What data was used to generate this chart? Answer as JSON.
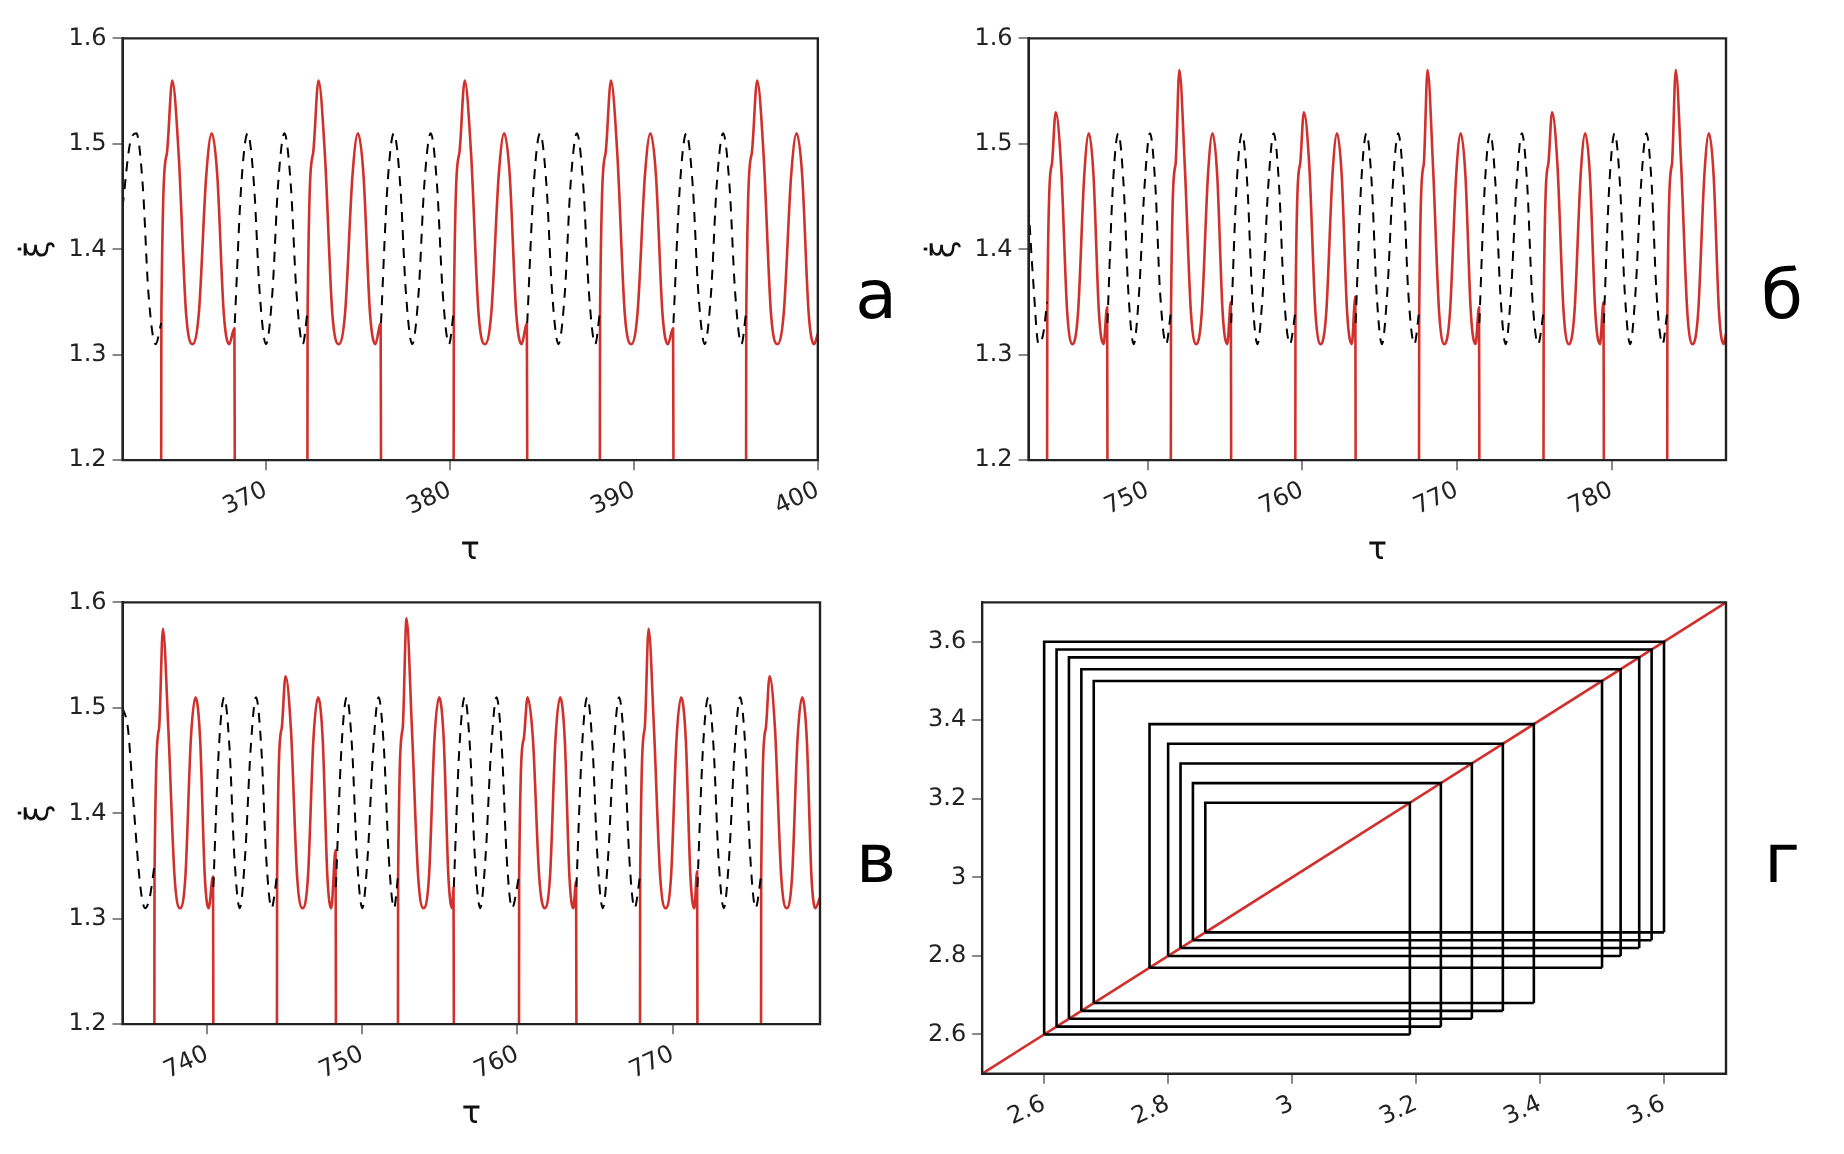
{
  "chart_data": [
    {
      "type": "line",
      "xlabel": "τ",
      "ylabel": "ξ̇",
      "xlim": [
        362.2,
        400
      ],
      "xticks": [
        370,
        380,
        390,
        400
      ],
      "ylim": [
        1.2,
        1.6
      ],
      "yticks": [
        1.2,
        1.3,
        1.4,
        1.5,
        1.6
      ],
      "annotations": [
        "а"
      ],
      "series": [
        {
          "color": "#d0312d",
          "line_style": "solid",
          "x": [
            364.3,
            364.31,
            364.6,
            364.9,
            365.25,
            365.65,
            366.0,
            366.35,
            366.75,
            367.05,
            367.35,
            367.7,
            368.0,
            368.28,
            368.3,
            null,
            372.25,
            372.26,
            372.55,
            372.85,
            373.2,
            373.6,
            373.95,
            374.3,
            374.7,
            375.0,
            375.3,
            375.65,
            375.95,
            376.23,
            376.25,
            null,
            380.2,
            380.21,
            380.5,
            380.8,
            381.15,
            381.55,
            381.9,
            382.25,
            382.65,
            382.95,
            383.25,
            383.6,
            383.9,
            384.18,
            384.2,
            null,
            388.15,
            388.16,
            388.45,
            388.75,
            389.1,
            389.5,
            389.85,
            390.2,
            390.6,
            390.9,
            391.2,
            391.55,
            391.85,
            392.13,
            392.15,
            null,
            396.1,
            396.11,
            396.4,
            396.7,
            397.05,
            397.45,
            397.8,
            398.15,
            398.55,
            398.85,
            399.15,
            399.5,
            399.8,
            400
          ],
          "values": [
            1.2,
            1.34,
            1.49,
            1.56,
            1.49,
            1.34,
            1.31,
            1.34,
            1.47,
            1.51,
            1.47,
            1.34,
            1.31,
            1.325,
            1.2,
            null,
            1.2,
            1.34,
            1.49,
            1.56,
            1.49,
            1.34,
            1.31,
            1.34,
            1.47,
            1.51,
            1.47,
            1.34,
            1.31,
            1.33,
            1.2,
            null,
            1.2,
            1.34,
            1.49,
            1.56,
            1.49,
            1.34,
            1.31,
            1.34,
            1.47,
            1.51,
            1.47,
            1.34,
            1.31,
            1.33,
            1.2,
            null,
            1.2,
            1.34,
            1.49,
            1.56,
            1.49,
            1.34,
            1.31,
            1.34,
            1.47,
            1.51,
            1.47,
            1.34,
            1.31,
            1.325,
            1.2,
            null,
            1.2,
            1.34,
            1.49,
            1.56,
            1.49,
            1.34,
            1.31,
            1.34,
            1.47,
            1.51,
            1.47,
            1.34,
            1.31,
            1.32
          ]
        },
        {
          "color": "#000000",
          "line_style": "dashed",
          "x": [
            362.2,
            362.6,
            362.95,
            363.3,
            363.6,
            364.0,
            364.3,
            null,
            368.3,
            368.65,
            369.0,
            369.35,
            369.65,
            370.0,
            370.35,
            370.65,
            371.0,
            371.35,
            371.65,
            372.0,
            372.25,
            null,
            376.25,
            376.6,
            376.95,
            377.3,
            377.6,
            377.95,
            378.3,
            378.6,
            378.95,
            379.3,
            379.6,
            379.95,
            380.2,
            null,
            384.2,
            384.55,
            384.9,
            385.25,
            385.55,
            385.9,
            386.25,
            386.55,
            386.9,
            387.25,
            387.55,
            387.9,
            388.15,
            null,
            392.15,
            392.5,
            392.85,
            393.2,
            393.5,
            393.85,
            394.2,
            394.5,
            394.85,
            395.2,
            395.5,
            395.85,
            396.1
          ],
          "values": [
            1.44,
            1.5,
            1.51,
            1.46,
            1.36,
            1.31,
            1.33,
            null,
            1.33,
            1.46,
            1.51,
            1.46,
            1.36,
            1.31,
            1.36,
            1.46,
            1.51,
            1.46,
            1.36,
            1.31,
            1.34,
            null,
            1.33,
            1.46,
            1.51,
            1.46,
            1.36,
            1.31,
            1.36,
            1.46,
            1.51,
            1.46,
            1.36,
            1.31,
            1.34,
            null,
            1.33,
            1.46,
            1.51,
            1.46,
            1.36,
            1.31,
            1.36,
            1.46,
            1.51,
            1.46,
            1.36,
            1.31,
            1.34,
            null,
            1.33,
            1.46,
            1.51,
            1.46,
            1.36,
            1.31,
            1.36,
            1.46,
            1.51,
            1.46,
            1.36,
            1.31,
            1.34
          ]
        }
      ]
    },
    {
      "type": "line",
      "xlabel": "τ",
      "ylabel": "ξ̇",
      "xlim": [
        742.3,
        787.4
      ],
      "xticks": [
        750,
        760,
        770,
        780
      ],
      "ylim": [
        1.2,
        1.6
      ],
      "yticks": [
        1.2,
        1.3,
        1.4,
        1.5,
        1.6
      ],
      "annotations": [
        "б"
      ],
      "series": [
        {
          "color": "#d0312d",
          "line_style": "solid",
          "x": [
            743.5,
            743.51,
            743.8,
            744.05,
            744.4,
            744.8,
            745.15,
            745.5,
            745.9,
            746.2,
            746.5,
            746.85,
            747.15,
            747.38,
            747.4,
            null,
            751.5,
            751.51,
            751.8,
            752.05,
            752.4,
            752.8,
            753.15,
            753.5,
            753.9,
            754.2,
            754.5,
            754.85,
            755.15,
            755.38,
            755.4,
            null,
            759.55,
            759.56,
            759.85,
            760.1,
            760.45,
            760.85,
            761.2,
            761.55,
            761.95,
            762.25,
            762.55,
            762.9,
            763.2,
            763.43,
            763.45,
            null,
            767.55,
            767.56,
            767.85,
            768.1,
            768.45,
            768.85,
            769.2,
            769.55,
            769.95,
            770.25,
            770.55,
            770.9,
            771.2,
            771.43,
            771.45,
            null,
            775.6,
            775.61,
            775.9,
            776.15,
            776.5,
            776.9,
            777.25,
            777.6,
            778.0,
            778.3,
            778.6,
            778.95,
            779.25,
            779.48,
            779.5,
            null,
            783.6,
            783.61,
            783.9,
            784.15,
            784.5,
            784.9,
            785.25,
            785.6,
            786.0,
            786.3,
            786.6,
            786.95,
            787.25,
            787.4
          ],
          "values": [
            1.2,
            1.34,
            1.48,
            1.53,
            1.48,
            1.34,
            1.31,
            1.34,
            1.47,
            1.51,
            1.47,
            1.34,
            1.31,
            1.345,
            1.2,
            null,
            1.2,
            1.34,
            1.48,
            1.57,
            1.48,
            1.34,
            1.31,
            1.34,
            1.47,
            1.51,
            1.47,
            1.34,
            1.31,
            1.35,
            1.2,
            null,
            1.2,
            1.34,
            1.48,
            1.53,
            1.48,
            1.34,
            1.31,
            1.34,
            1.47,
            1.51,
            1.47,
            1.34,
            1.31,
            1.355,
            1.2,
            null,
            1.2,
            1.34,
            1.48,
            1.57,
            1.48,
            1.34,
            1.31,
            1.34,
            1.47,
            1.51,
            1.47,
            1.34,
            1.31,
            1.345,
            1.2,
            null,
            1.2,
            1.34,
            1.48,
            1.53,
            1.48,
            1.34,
            1.31,
            1.34,
            1.47,
            1.51,
            1.47,
            1.34,
            1.31,
            1.35,
            1.2,
            null,
            1.2,
            1.34,
            1.48,
            1.57,
            1.48,
            1.34,
            1.31,
            1.34,
            1.47,
            1.51,
            1.47,
            1.34,
            1.31,
            1.32
          ]
        },
        {
          "color": "#000000",
          "line_style": "dashed",
          "x": [
            742.3,
            742.6,
            742.95,
            743.25,
            743.5,
            null,
            747.4,
            747.75,
            748.1,
            748.45,
            748.75,
            749.1,
            749.45,
            749.8,
            750.15,
            750.5,
            750.8,
            751.2,
            751.5,
            null,
            755.4,
            755.75,
            756.1,
            756.45,
            756.75,
            757.1,
            757.45,
            757.8,
            758.15,
            758.5,
            758.8,
            759.2,
            759.55,
            null,
            763.45,
            763.8,
            764.15,
            764.5,
            764.8,
            765.15,
            765.5,
            765.85,
            766.2,
            766.55,
            766.85,
            767.25,
            767.55,
            null,
            771.45,
            771.8,
            772.15,
            772.5,
            772.8,
            773.15,
            773.5,
            773.85,
            774.2,
            774.55,
            774.85,
            775.25,
            775.6,
            null,
            779.5,
            779.85,
            780.2,
            780.55,
            780.85,
            781.2,
            781.55,
            781.9,
            782.25,
            782.6,
            782.9,
            783.3,
            783.6
          ],
          "values": [
            1.44,
            1.37,
            1.31,
            1.32,
            1.35,
            null,
            1.33,
            1.46,
            1.51,
            1.46,
            1.36,
            1.31,
            1.36,
            1.46,
            1.51,
            1.46,
            1.36,
            1.31,
            1.34,
            null,
            1.33,
            1.46,
            1.51,
            1.46,
            1.36,
            1.31,
            1.36,
            1.46,
            1.51,
            1.46,
            1.36,
            1.31,
            1.34,
            null,
            1.33,
            1.46,
            1.51,
            1.46,
            1.36,
            1.31,
            1.36,
            1.46,
            1.51,
            1.46,
            1.36,
            1.31,
            1.34,
            null,
            1.33,
            1.46,
            1.51,
            1.46,
            1.36,
            1.31,
            1.36,
            1.46,
            1.51,
            1.46,
            1.36,
            1.31,
            1.34,
            null,
            1.33,
            1.46,
            1.51,
            1.46,
            1.36,
            1.31,
            1.36,
            1.46,
            1.51,
            1.46,
            1.36,
            1.31,
            1.34
          ]
        }
      ]
    },
    {
      "type": "line",
      "xlabel": "τ",
      "ylabel": "ξ̇",
      "xlim": [
        734.55,
        779.5
      ],
      "xticks": [
        740,
        750,
        760,
        770
      ],
      "ylim": [
        1.2,
        1.6
      ],
      "yticks": [
        1.2,
        1.3,
        1.4,
        1.5,
        1.6
      ],
      "annotations": [
        "в"
      ],
      "series": [
        {
          "color": "#d0312d",
          "line_style": "solid",
          "x": [
            736.6,
            736.61,
            736.9,
            737.15,
            737.5,
            737.9,
            738.25,
            738.6,
            738.95,
            739.25,
            739.55,
            739.85,
            740.1,
            740.38,
            740.4,
            null,
            744.5,
            744.51,
            744.8,
            745.05,
            745.4,
            745.8,
            746.15,
            746.5,
            746.85,
            747.15,
            747.45,
            747.75,
            748.0,
            748.28,
            748.3,
            null,
            752.3,
            752.31,
            752.6,
            752.85,
            753.2,
            753.6,
            753.95,
            754.3,
            754.65,
            754.95,
            755.25,
            755.55,
            755.8,
            755.88,
            755.9,
            null,
            760.1,
            760.11,
            760.4,
            760.65,
            761.0,
            761.4,
            761.75,
            762.1,
            762.45,
            762.75,
            763.05,
            763.35,
            763.6,
            763.78,
            763.8,
            null,
            767.9,
            767.91,
            768.2,
            768.45,
            768.8,
            769.2,
            769.55,
            769.9,
            770.25,
            770.55,
            770.85,
            771.15,
            771.4,
            771.58,
            771.6,
            null,
            775.7,
            775.71,
            776.0,
            776.25,
            776.6,
            777.0,
            777.35,
            777.7,
            778.05,
            778.35,
            778.65,
            778.95,
            779.2,
            779.5
          ],
          "values": [
            1.2,
            1.34,
            1.48,
            1.575,
            1.48,
            1.34,
            1.31,
            1.34,
            1.47,
            1.51,
            1.47,
            1.34,
            1.31,
            1.34,
            1.2,
            null,
            1.2,
            1.34,
            1.48,
            1.53,
            1.48,
            1.34,
            1.31,
            1.34,
            1.47,
            1.51,
            1.47,
            1.34,
            1.31,
            1.365,
            1.2,
            null,
            1.2,
            1.34,
            1.48,
            1.585,
            1.48,
            1.34,
            1.31,
            1.34,
            1.47,
            1.51,
            1.47,
            1.34,
            1.31,
            1.33,
            1.2,
            null,
            1.2,
            1.34,
            1.47,
            1.51,
            1.47,
            1.34,
            1.31,
            1.34,
            1.47,
            1.51,
            1.47,
            1.34,
            1.31,
            1.335,
            1.2,
            null,
            1.2,
            1.34,
            1.48,
            1.575,
            1.48,
            1.34,
            1.31,
            1.34,
            1.47,
            1.51,
            1.47,
            1.34,
            1.31,
            1.345,
            1.2,
            null,
            1.2,
            1.34,
            1.48,
            1.53,
            1.48,
            1.34,
            1.31,
            1.34,
            1.47,
            1.51,
            1.47,
            1.34,
            1.31,
            1.32
          ]
        },
        {
          "color": "#000000",
          "line_style": "dashed",
          "x": [
            734.55,
            734.9,
            735.3,
            735.7,
            736.0,
            736.3,
            736.6,
            null,
            740.4,
            740.75,
            741.1,
            741.45,
            741.75,
            742.1,
            742.45,
            742.8,
            743.15,
            743.5,
            743.8,
            744.15,
            744.5,
            null,
            748.3,
            748.65,
            749.0,
            749.35,
            749.65,
            750.0,
            750.35,
            750.7,
            751.05,
            751.4,
            751.7,
            752.05,
            752.3,
            null,
            755.9,
            756.25,
            756.6,
            756.95,
            757.25,
            757.6,
            757.95,
            758.3,
            758.65,
            759.0,
            759.3,
            759.65,
            760.1,
            null,
            763.8,
            764.15,
            764.5,
            764.85,
            765.15,
            765.5,
            765.85,
            766.2,
            766.55,
            766.9,
            767.2,
            767.55,
            767.9,
            null,
            771.6,
            771.95,
            772.3,
            772.65,
            772.95,
            773.3,
            773.65,
            774.0,
            774.35,
            774.7,
            775.0,
            775.35,
            775.7
          ],
          "values": [
            1.5,
            1.48,
            1.4,
            1.33,
            1.31,
            1.32,
            1.35,
            null,
            1.33,
            1.46,
            1.51,
            1.46,
            1.36,
            1.31,
            1.36,
            1.46,
            1.51,
            1.46,
            1.36,
            1.31,
            1.34,
            null,
            1.33,
            1.46,
            1.51,
            1.46,
            1.36,
            1.31,
            1.36,
            1.46,
            1.51,
            1.46,
            1.36,
            1.31,
            1.34,
            null,
            1.33,
            1.46,
            1.51,
            1.46,
            1.36,
            1.31,
            1.36,
            1.46,
            1.51,
            1.46,
            1.36,
            1.31,
            1.34,
            null,
            1.33,
            1.46,
            1.51,
            1.46,
            1.36,
            1.31,
            1.36,
            1.46,
            1.51,
            1.46,
            1.36,
            1.31,
            1.34,
            null,
            1.33,
            1.46,
            1.51,
            1.46,
            1.36,
            1.31,
            1.36,
            1.46,
            1.51,
            1.46,
            1.36,
            1.31,
            1.34
          ]
        }
      ]
    },
    {
      "type": "line",
      "xlim": [
        2.5,
        3.7
      ],
      "xticks": [
        2.6,
        2.8,
        3,
        3.2,
        3.4,
        3.6
      ],
      "ylim": [
        2.5,
        3.7
      ],
      "yticks": [
        2.6,
        2.8,
        3,
        3.2,
        3.4,
        3.6
      ],
      "annotations": [
        "г"
      ],
      "series": [
        {
          "color": "#d0312d",
          "line_style": "solid",
          "x": [
            2.5,
            3.7
          ],
          "values": [
            2.5,
            3.7
          ]
        },
        {
          "color": "#000000",
          "line_style": "solid",
          "x": [
            2.6,
            2.6,
            3.6,
            3.6,
            null,
            2.86,
            2.86,
            3.19,
            3.19,
            null,
            2.86,
            3.6,
            null,
            2.6,
            3.19
          ],
          "values": [
            2.6,
            3.6,
            3.6,
            2.86,
            null,
            2.86,
            3.19,
            3.19,
            2.6,
            null,
            2.86,
            2.86,
            null,
            2.6,
            2.6
          ]
        },
        {
          "color": "#000000",
          "line_style": "solid",
          "x": [
            2.62,
            2.62,
            3.58,
            3.58,
            null,
            2.84,
            2.84,
            3.24,
            3.24,
            null,
            2.84,
            3.58,
            null,
            2.62,
            3.24
          ],
          "values": [
            2.62,
            3.58,
            3.58,
            2.84,
            null,
            2.84,
            3.24,
            3.24,
            2.62,
            null,
            2.84,
            2.84,
            null,
            2.62,
            2.62
          ]
        },
        {
          "color": "#000000",
          "line_style": "solid",
          "x": [
            2.64,
            2.64,
            3.56,
            3.56,
            null,
            2.82,
            2.82,
            3.29,
            3.29,
            null,
            2.82,
            3.56,
            null,
            2.64,
            3.29
          ],
          "values": [
            2.64,
            3.56,
            3.56,
            2.82,
            null,
            2.82,
            3.29,
            3.29,
            2.64,
            null,
            2.82,
            2.82,
            null,
            2.64,
            2.64
          ]
        },
        {
          "color": "#000000",
          "line_style": "solid",
          "x": [
            2.66,
            2.66,
            3.53,
            3.53,
            null,
            2.8,
            2.8,
            3.34,
            3.34,
            null,
            2.8,
            3.53,
            null,
            2.66,
            3.34
          ],
          "values": [
            2.66,
            3.53,
            3.53,
            2.8,
            null,
            2.8,
            3.34,
            3.34,
            2.66,
            null,
            2.8,
            2.8,
            null,
            2.66,
            2.66
          ]
        },
        {
          "color": "#000000",
          "line_style": "solid",
          "x": [
            2.68,
            2.68,
            3.5,
            3.5,
            null,
            2.77,
            2.77,
            3.39,
            3.39,
            null,
            2.77,
            3.5,
            null,
            2.68,
            3.39
          ],
          "values": [
            2.68,
            3.5,
            3.5,
            2.77,
            null,
            2.77,
            3.39,
            3.39,
            2.68,
            null,
            2.77,
            2.77,
            null,
            2.68,
            2.68
          ]
        }
      ]
    }
  ]
}
